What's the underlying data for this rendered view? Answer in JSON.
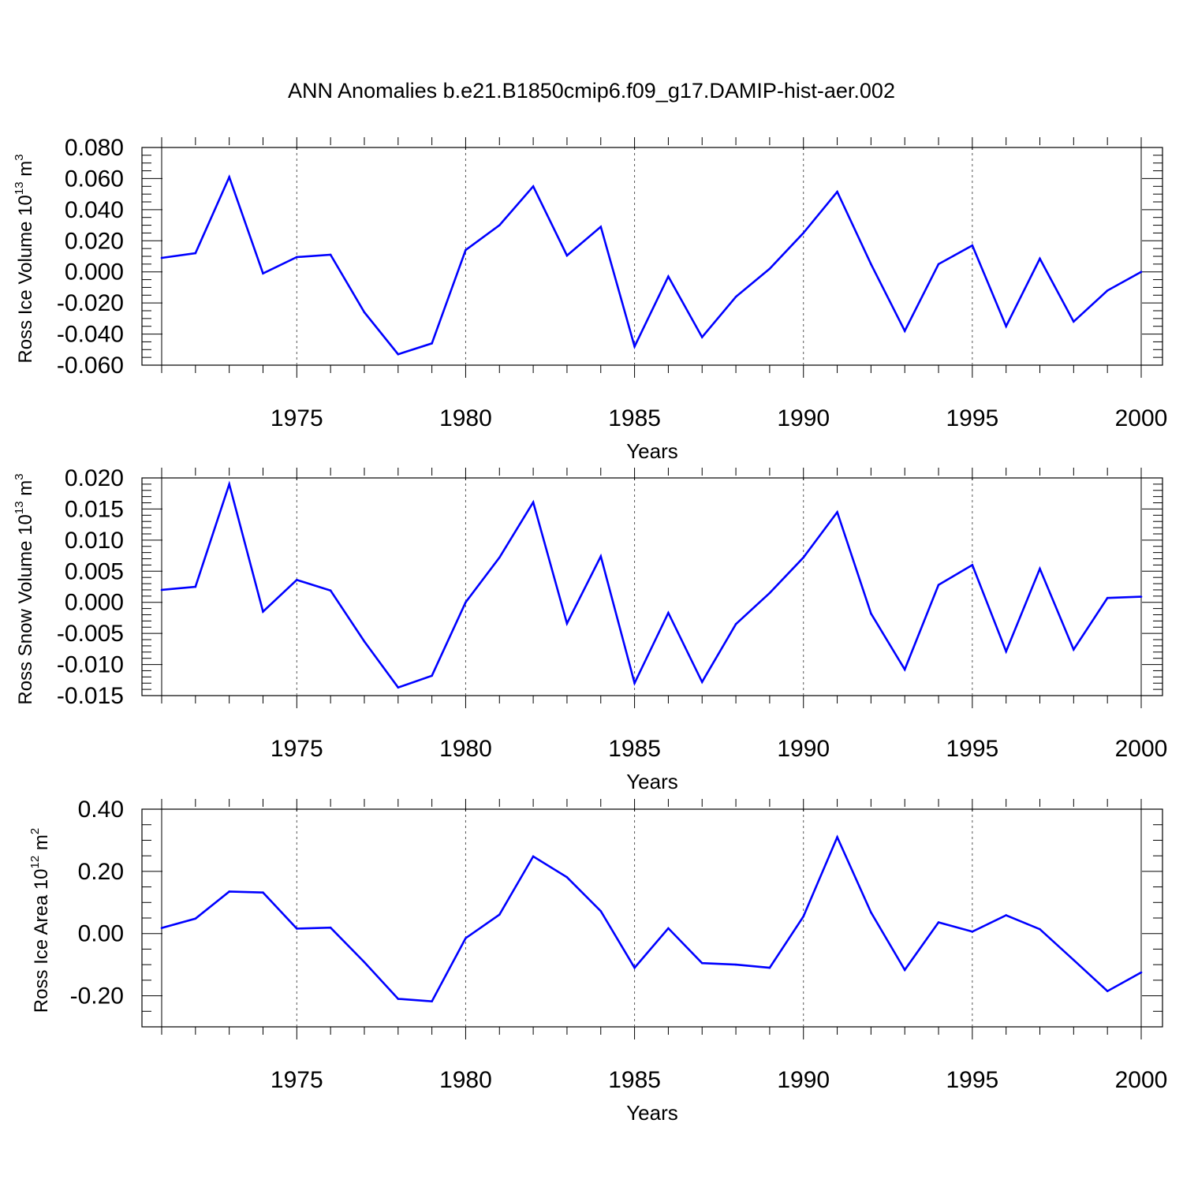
{
  "title": "ANN Anomalies b.e21.B1850cmip6.f09_g17.DAMIP-hist-aer.002",
  "colors": {
    "series": "#0000ff",
    "axis": "#000000",
    "grid": "#555555"
  },
  "chart_data": [
    {
      "type": "line",
      "xlabel": "Years",
      "ylabel": {
        "text": "Ross Ice Volume 10",
        "sup": "13",
        "unit": " m",
        "unit_sup": "3"
      },
      "xlim": [
        1971,
        2000
      ],
      "ylim": [
        -0.06,
        0.08
      ],
      "yticks": [
        -0.06,
        -0.04,
        -0.02,
        0.0,
        0.02,
        0.04,
        0.06,
        0.08
      ],
      "ytick_labels": [
        "-0.060",
        "-0.040",
        "-0.020",
        "0.000",
        "0.020",
        "0.040",
        "0.060",
        "0.080"
      ],
      "yminor_step": 0.005,
      "xticks": [
        1975,
        1980,
        1985,
        1990,
        1995,
        2000
      ],
      "xtick_labels": [
        "1975",
        "1980",
        "1985",
        "1990",
        "1995",
        "2000"
      ],
      "grid": "vertical dashed at labeled years",
      "x": [
        1971,
        1972,
        1973,
        1974,
        1975,
        1976,
        1977,
        1978,
        1979,
        1980,
        1981,
        1982,
        1983,
        1984,
        1985,
        1986,
        1987,
        1988,
        1989,
        1990,
        1991,
        1992,
        1993,
        1994,
        1995,
        1996,
        1997,
        1998,
        1999,
        2000
      ],
      "y": [
        0.009,
        0.012,
        0.061,
        -0.001,
        0.0095,
        0.011,
        -0.026,
        -0.053,
        -0.046,
        0.014,
        0.03,
        0.055,
        0.0105,
        0.029,
        -0.048,
        -0.003,
        -0.042,
        -0.016,
        0.002,
        0.025,
        0.0515,
        0.005,
        -0.038,
        0.005,
        0.017,
        -0.035,
        0.0085,
        -0.032,
        -0.012,
        0.0
      ]
    },
    {
      "type": "line",
      "xlabel": "Years",
      "ylabel": {
        "text": "Ross Snow Volume 10",
        "sup": "13",
        "unit": " m",
        "unit_sup": "3"
      },
      "xlim": [
        1971,
        2000
      ],
      "ylim": [
        -0.015,
        0.02
      ],
      "yticks": [
        -0.015,
        -0.01,
        -0.005,
        0.0,
        0.005,
        0.01,
        0.015,
        0.02
      ],
      "ytick_labels": [
        "-0.015",
        "-0.010",
        "-0.005",
        "0.000",
        "0.005",
        "0.010",
        "0.015",
        "0.020"
      ],
      "yminor_step": 0.001,
      "xticks": [
        1975,
        1980,
        1985,
        1990,
        1995,
        2000
      ],
      "xtick_labels": [
        "1975",
        "1980",
        "1985",
        "1990",
        "1995",
        "2000"
      ],
      "grid": "vertical dashed at labeled years",
      "x": [
        1971,
        1972,
        1973,
        1974,
        1975,
        1976,
        1977,
        1978,
        1979,
        1980,
        1981,
        1982,
        1983,
        1984,
        1985,
        1986,
        1987,
        1988,
        1989,
        1990,
        1991,
        1992,
        1993,
        1994,
        1995,
        1996,
        1997,
        1998,
        1999,
        2000
      ],
      "y": [
        0.002,
        0.0025,
        0.019,
        -0.0015,
        0.0036,
        0.0019,
        -0.0063,
        -0.0137,
        -0.0118,
        0.0,
        0.0072,
        0.0161,
        -0.0034,
        0.0074,
        -0.013,
        -0.0017,
        -0.0128,
        -0.0035,
        0.0015,
        0.0072,
        0.0145,
        -0.0018,
        -0.0108,
        0.0028,
        0.006,
        -0.0079,
        0.0054,
        -0.0076,
        0.0007,
        0.0009
      ]
    },
    {
      "type": "line",
      "xlabel": "Years",
      "ylabel": {
        "text": "Ross Ice Area 10",
        "sup": "12",
        "unit": " m",
        "unit_sup": "2"
      },
      "xlim": [
        1971,
        2000
      ],
      "ylim": [
        -0.3,
        0.4
      ],
      "yticks": [
        -0.2,
        0.0,
        0.2,
        0.4
      ],
      "ytick_labels": [
        "-0.20",
        "0.00",
        "0.20",
        "0.40"
      ],
      "yminor_step": 0.05,
      "xticks": [
        1975,
        1980,
        1985,
        1990,
        1995,
        2000
      ],
      "xtick_labels": [
        "1975",
        "1980",
        "1985",
        "1990",
        "1995",
        "2000"
      ],
      "grid": "vertical dashed at labeled years",
      "x": [
        1971,
        1972,
        1973,
        1974,
        1975,
        1976,
        1977,
        1978,
        1979,
        1980,
        1981,
        1982,
        1983,
        1984,
        1985,
        1986,
        1987,
        1988,
        1989,
        1990,
        1991,
        1992,
        1993,
        1994,
        1995,
        1996,
        1997,
        1998,
        1999,
        2000
      ],
      "y": [
        0.018,
        0.048,
        0.135,
        0.132,
        0.016,
        0.019,
        -0.092,
        -0.21,
        -0.218,
        -0.015,
        0.061,
        0.248,
        0.181,
        0.072,
        -0.11,
        0.017,
        -0.095,
        -0.1,
        -0.11,
        0.055,
        0.31,
        0.068,
        -0.117,
        0.036,
        0.006,
        0.059,
        0.014,
        -0.085,
        -0.185,
        -0.125
      ]
    }
  ]
}
